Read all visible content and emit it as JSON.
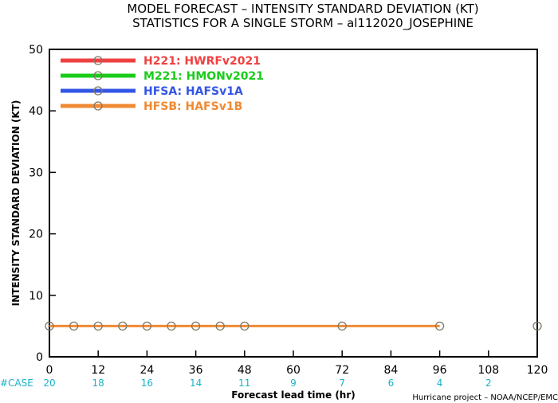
{
  "chart_data": {
    "type": "line",
    "title": "MODEL FORECAST – INTENSITY STANDARD DEVIATION (KT)",
    "subtitle": "STATISTICS FOR A SINGLE STORM – al112020_JOSEPHINE",
    "xlabel": "Forecast lead time (hr)",
    "ylabel": "INTENSITY STANDARD DEVIATION (KT)",
    "xlim": [
      0,
      120
    ],
    "ylim": [
      0,
      50
    ],
    "xticks": [
      0,
      12,
      24,
      36,
      48,
      60,
      72,
      84,
      96,
      108,
      120
    ],
    "yticks": [
      0,
      10,
      20,
      30,
      40,
      50
    ],
    "grid": false,
    "legend_position": "top-left",
    "series": [
      {
        "name": "H221: HWRFv2021",
        "color": "#f04040",
        "x": [],
        "y": []
      },
      {
        "name": "M221: HMONv2021",
        "color": "#19cc19",
        "x": [],
        "y": []
      },
      {
        "name": "HFSA: HAFSv1A",
        "color": "#3355e6",
        "x": [],
        "y": []
      },
      {
        "name": "HFSB: HAFSv1B",
        "color": "#f08a33",
        "x": [
          0,
          6,
          12,
          18,
          24,
          30,
          36,
          42,
          48,
          72,
          96,
          120
        ],
        "y": [
          5,
          5,
          5,
          5,
          5,
          5,
          5,
          5,
          5,
          5,
          5,
          5
        ],
        "line_segments": [
          [
            0,
            96
          ]
        ]
      }
    ],
    "cases": {
      "label": "#CASE",
      "color": "#19b3c8",
      "x": [
        0,
        12,
        24,
        36,
        48,
        60,
        72,
        84,
        96,
        108
      ],
      "values": [
        "20",
        "18",
        "16",
        "14",
        "11",
        "9",
        "7",
        "6",
        "4",
        "2"
      ]
    },
    "credit": "Hurricane project – NOAA/NCEP/EMC"
  }
}
